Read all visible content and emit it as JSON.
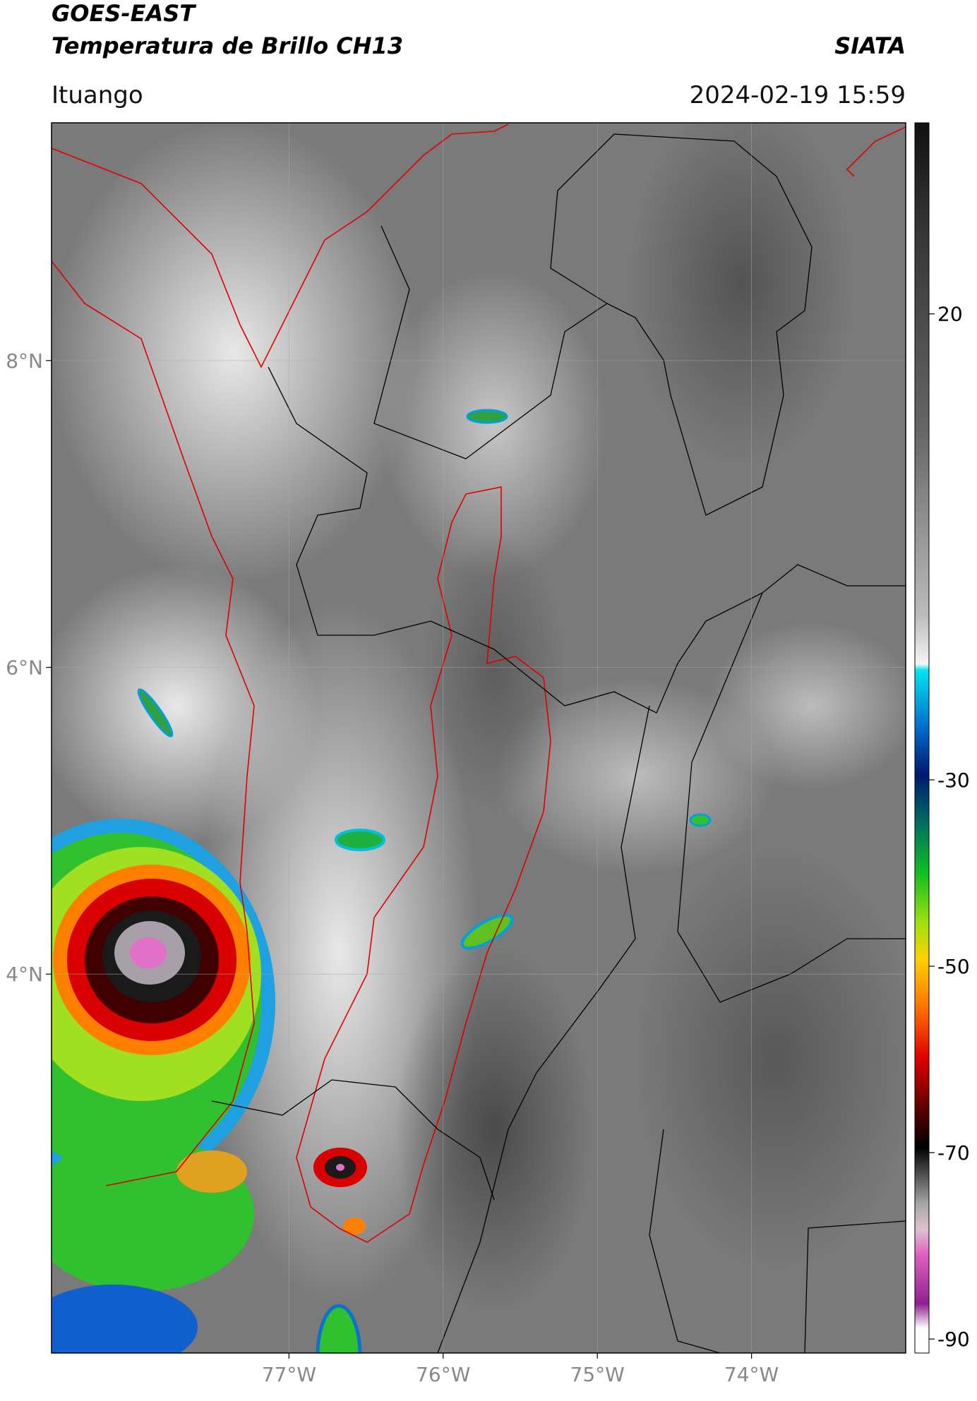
{
  "header": {
    "title": "GOES-EAST",
    "subtitle": "Temperatura de Brillo CH13",
    "source": "SIATA",
    "location": "Ituango",
    "datetime": "2024-02-19 15:59"
  },
  "map": {
    "xlim": [
      -78.54,
      -73.0
    ],
    "ylim": [
      1.53,
      9.55
    ],
    "xticks": [
      {
        "value": -77,
        "label": "77°W"
      },
      {
        "value": -76,
        "label": "76°W"
      },
      {
        "value": -75,
        "label": "75°W"
      },
      {
        "value": -74,
        "label": "74°W"
      }
    ],
    "yticks": [
      {
        "value": 8,
        "label": "8°N"
      },
      {
        "value": 6,
        "label": "6°N"
      },
      {
        "value": 4,
        "label": "4°N"
      }
    ],
    "grid": true
  },
  "colorbar": {
    "clim": [
      -91.5,
      40.5
    ],
    "ticks": [
      20,
      -30,
      -50,
      -70,
      -90
    ]
  }
}
